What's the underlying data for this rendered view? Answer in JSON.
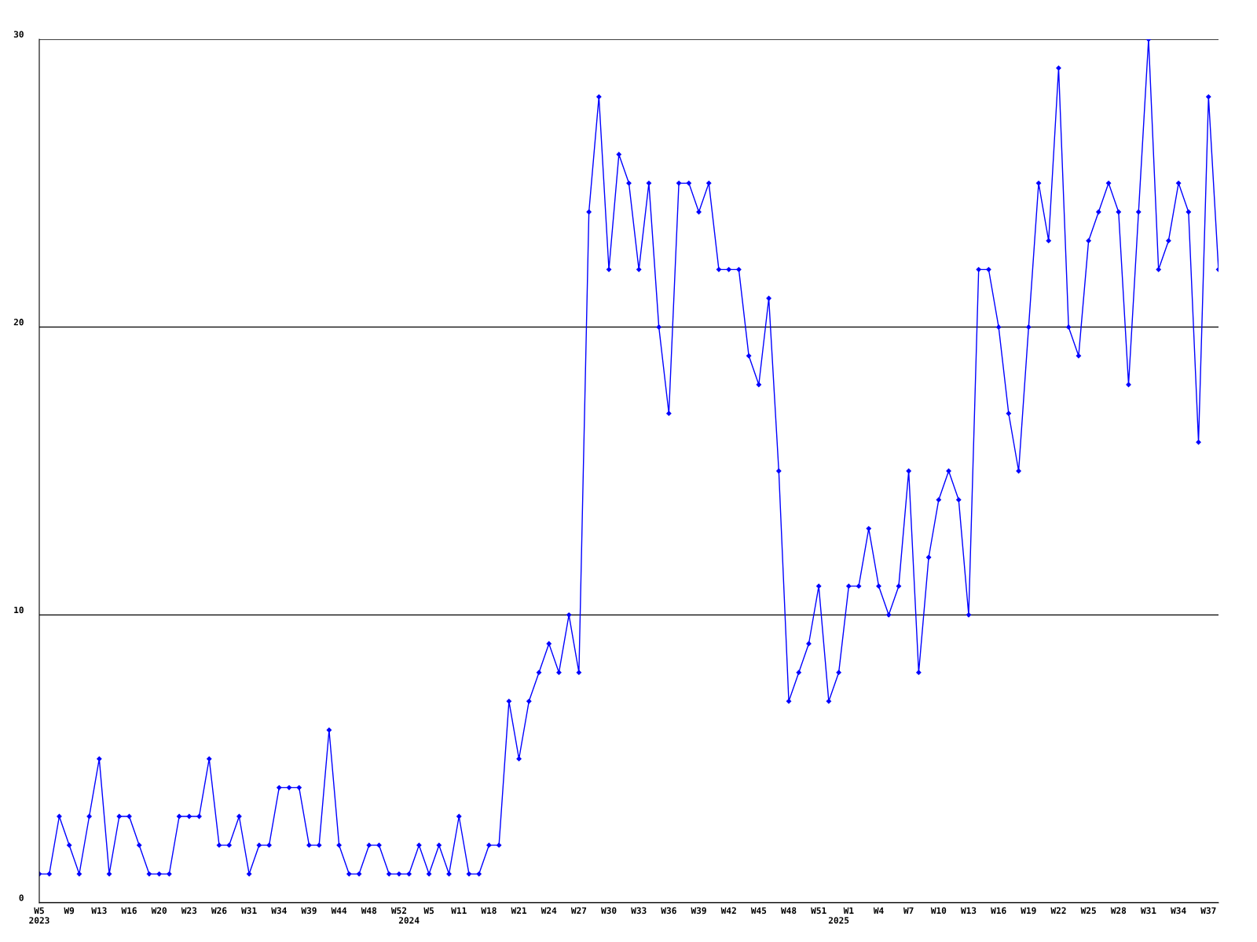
{
  "chart_data": {
    "type": "line",
    "categories": [
      "W5\n2023",
      null,
      null,
      "W9",
      null,
      null,
      "W13",
      null,
      null,
      "W16",
      null,
      null,
      "W20",
      null,
      null,
      "W23",
      null,
      null,
      "W26",
      null,
      null,
      "W31",
      null,
      null,
      "W34",
      null,
      null,
      "W39",
      null,
      null,
      "W44",
      null,
      null,
      "W48",
      null,
      null,
      "W52",
      "\n2024",
      null,
      "W5",
      null,
      null,
      "W11",
      null,
      null,
      "W18",
      null,
      null,
      "W21",
      null,
      null,
      "W24",
      null,
      null,
      "W27",
      null,
      null,
      "W30",
      null,
      null,
      "W33",
      null,
      null,
      "W36",
      null,
      null,
      "W39",
      null,
      null,
      "W42",
      null,
      null,
      "W45",
      null,
      null,
      "W48",
      null,
      null,
      "W51",
      null,
      "\n2025",
      "W1",
      null,
      null,
      "W4",
      null,
      null,
      "W7",
      null,
      null,
      "W10",
      null,
      null,
      "W13",
      null,
      null,
      "W16",
      null,
      null,
      "W19",
      null,
      null,
      "W22",
      null,
      null,
      "W25",
      null,
      null,
      "W28",
      null,
      null,
      "W31",
      null,
      null,
      "W34",
      null,
      null,
      "W37",
      null
    ],
    "series": [
      {
        "color": "#0000ff",
        "values": [
          1,
          1,
          3,
          2,
          1,
          3,
          5,
          1,
          3,
          3,
          2,
          1,
          1,
          1,
          3,
          3,
          3,
          5,
          2,
          2,
          3,
          1,
          2,
          2,
          4,
          4,
          4,
          2,
          2,
          6,
          2,
          1,
          1,
          2,
          2,
          1,
          1,
          1,
          2,
          1,
          2,
          1,
          3,
          1,
          1,
          2,
          2,
          7,
          5,
          7,
          8,
          9,
          8,
          10,
          8,
          24,
          28,
          22,
          26,
          25,
          22,
          25,
          20,
          17,
          25,
          25,
          24,
          25,
          22,
          22,
          22,
          19,
          18,
          21,
          15,
          7,
          8,
          9,
          11,
          7,
          8,
          11,
          11,
          13,
          11,
          10,
          11,
          15,
          8,
          12,
          14,
          15,
          14,
          10,
          22,
          22,
          20,
          17,
          15,
          20,
          25,
          23,
          29,
          20,
          19,
          23,
          24,
          25,
          24,
          18,
          24,
          30,
          22,
          23,
          25,
          24,
          16,
          28,
          22
        ]
      }
    ],
    "ylim": [
      0,
      30
    ],
    "yticks": [
      0,
      10,
      20,
      30
    ],
    "grid": "y",
    "marker": "diamond",
    "line_style": "solid"
  }
}
